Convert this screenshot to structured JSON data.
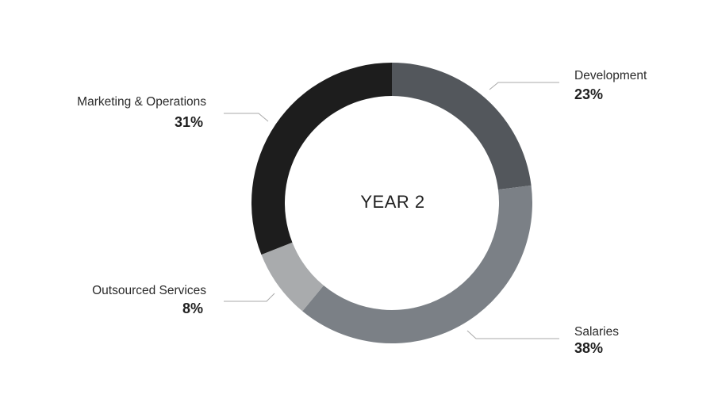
{
  "chart_data": {
    "type": "pie",
    "center_label": "YEAR 2",
    "slices": [
      {
        "name": "Development",
        "value": 23,
        "label": "23%",
        "color": "#53575c"
      },
      {
        "name": "Salaries",
        "value": 38,
        "label": "38%",
        "color": "#7b8086"
      },
      {
        "name": "Outsourced Services",
        "value": 8,
        "label": "8%",
        "color": "#a9abad"
      },
      {
        "name": "Marketing & Operations",
        "value": 31,
        "label": "31%",
        "color": "#1d1d1d"
      }
    ],
    "legend": "none"
  }
}
